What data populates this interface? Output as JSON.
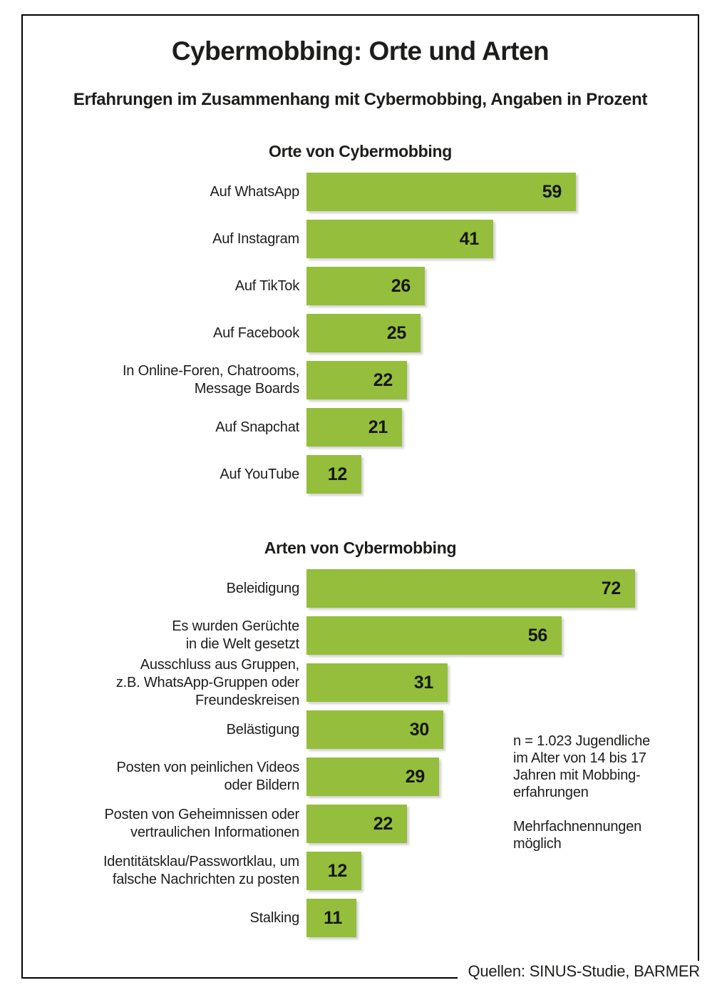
{
  "page": {
    "title": "Cybermobbing: Orte und Arten",
    "subtitle": "Erfahrungen im Zusammenhang mit Cybermobbing, Angaben in Prozent",
    "source": "Quellen: SINUS-Studie, BARMER",
    "notes": {
      "sample": "n = 1.023 Jugendliche\nim Alter von 14 bis 17\nJahren mit Mobbing-\nerfahrungen",
      "multiple": "Mehrfachnennungen\nmöglich"
    },
    "colors": {
      "bar_green": "#94be3c",
      "text": "#1d1d1b",
      "frame_border": "#000000"
    }
  },
  "chart_data": [
    {
      "type": "bar",
      "orientation": "horizontal",
      "title": "Orte von Cybermobbing",
      "unit": "percent",
      "xlim": [
        0,
        75
      ],
      "value_labels": "inside-right",
      "grid": false,
      "legend": false,
      "categories": [
        "Auf WhatsApp",
        "Auf Instagram",
        "Auf TikTok",
        "Auf Facebook",
        "In Online-Foren, Chatrooms,\nMessage Boards",
        "Auf Snapchat",
        "Auf YouTube"
      ],
      "values": [
        59,
        41,
        26,
        25,
        22,
        21,
        12
      ]
    },
    {
      "type": "bar",
      "orientation": "horizontal",
      "title": "Arten von Cybermobbing",
      "unit": "percent",
      "xlim": [
        0,
        75
      ],
      "value_labels": "inside-right",
      "grid": false,
      "legend": false,
      "categories": [
        "Beleidigung",
        "Es wurden Gerüchte\nin die Welt gesetzt",
        "Ausschluss aus Gruppen,\nz.B. WhatsApp-Gruppen oder\nFreundeskreisen",
        "Belästigung",
        "Posten von peinlichen Videos\noder Bildern",
        "Posten von Geheimnissen oder\nvertraulichen Informationen",
        "Identitätsklau/Passwortklau, um\nfalsche Nachrichten zu posten",
        "Stalking"
      ],
      "values": [
        72,
        56,
        31,
        30,
        29,
        22,
        12,
        11
      ]
    }
  ]
}
